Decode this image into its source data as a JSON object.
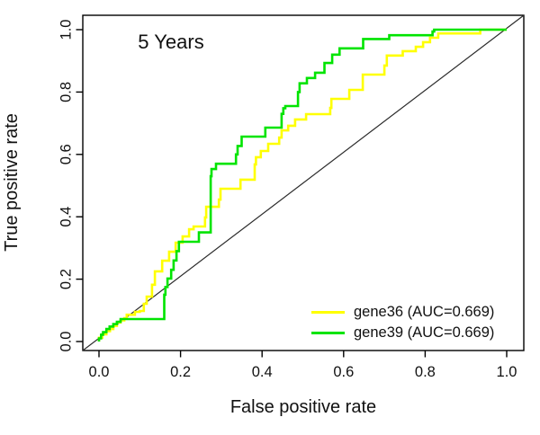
{
  "chart_data": {
    "type": "line",
    "subtype": "roc-step-curves",
    "title": "5 Years",
    "xlabel": "False positive rate",
    "ylabel": "True positive rate",
    "xlim": [
      0.0,
      1.0
    ],
    "ylim": [
      0.0,
      1.0
    ],
    "xticks": [
      0.0,
      0.2,
      0.4,
      0.6,
      0.8,
      1.0
    ],
    "xtick_labels": [
      "0.0",
      "0.2",
      "0.4",
      "0.6",
      "0.8",
      "1.0"
    ],
    "yticks": [
      0.0,
      0.2,
      0.4,
      0.6,
      0.8,
      1.0
    ],
    "ytick_labels": [
      "0.0",
      "0.2",
      "0.4",
      "0.6",
      "0.8",
      "1.0"
    ],
    "grid": false,
    "axis_color": "#000000",
    "text_color": "#111111",
    "legend": {
      "position": "bottom-right",
      "border": false
    },
    "reference_line": {
      "from": [
        0,
        0
      ],
      "to": [
        1,
        1
      ],
      "color": "#2b2b2b",
      "width": 1.2
    },
    "series": [
      {
        "name": "gene36",
        "auc": "0.669",
        "legend_label": "gene36 (AUC=0.669)",
        "color": "#ffff00",
        "line_width": 2.6,
        "points": [
          [
            0.0,
            0.0
          ],
          [
            0.008,
            0.012
          ],
          [
            0.018,
            0.023
          ],
          [
            0.027,
            0.033
          ],
          [
            0.035,
            0.04
          ],
          [
            0.044,
            0.05
          ],
          [
            0.053,
            0.061
          ],
          [
            0.062,
            0.068
          ],
          [
            0.068,
            0.075
          ],
          [
            0.088,
            0.086
          ],
          [
            0.1,
            0.095
          ],
          [
            0.11,
            0.098
          ],
          [
            0.117,
            0.121
          ],
          [
            0.13,
            0.144
          ],
          [
            0.137,
            0.182
          ],
          [
            0.155,
            0.225
          ],
          [
            0.172,
            0.259
          ],
          [
            0.188,
            0.288
          ],
          [
            0.205,
            0.317
          ],
          [
            0.221,
            0.337
          ],
          [
            0.232,
            0.36
          ],
          [
            0.238,
            0.369
          ],
          [
            0.26,
            0.369
          ],
          [
            0.263,
            0.398
          ],
          [
            0.272,
            0.432
          ],
          [
            0.294,
            0.432
          ],
          [
            0.298,
            0.455
          ],
          [
            0.309,
            0.49
          ],
          [
            0.347,
            0.49
          ],
          [
            0.35,
            0.519
          ],
          [
            0.382,
            0.519
          ],
          [
            0.385,
            0.568
          ],
          [
            0.397,
            0.591
          ],
          [
            0.415,
            0.611
          ],
          [
            0.442,
            0.634
          ],
          [
            0.448,
            0.654
          ],
          [
            0.464,
            0.677
          ],
          [
            0.481,
            0.692
          ],
          [
            0.508,
            0.712
          ],
          [
            0.523,
            0.729
          ],
          [
            0.567,
            0.729
          ],
          [
            0.57,
            0.749
          ],
          [
            0.581,
            0.778
          ],
          [
            0.614,
            0.778
          ],
          [
            0.618,
            0.807
          ],
          [
            0.647,
            0.807
          ],
          [
            0.651,
            0.856
          ],
          [
            0.7,
            0.856
          ],
          [
            0.706,
            0.885
          ],
          [
            0.745,
            0.917
          ],
          [
            0.777,
            0.931
          ],
          [
            0.795,
            0.945
          ],
          [
            0.812,
            0.96
          ],
          [
            0.832,
            0.974
          ],
          [
            0.855,
            0.988
          ],
          [
            0.935,
            0.988
          ],
          [
            0.94,
            1.0
          ],
          [
            1.0,
            1.0
          ]
        ]
      },
      {
        "name": "gene39",
        "auc": "0.669",
        "legend_label": "gene39 (AUC=0.669)",
        "color": "#00e400",
        "line_width": 2.6,
        "points": [
          [
            0.0,
            0.0
          ],
          [
            0.005,
            0.01
          ],
          [
            0.01,
            0.022
          ],
          [
            0.018,
            0.03
          ],
          [
            0.026,
            0.04
          ],
          [
            0.035,
            0.048
          ],
          [
            0.044,
            0.056
          ],
          [
            0.053,
            0.063
          ],
          [
            0.062,
            0.072
          ],
          [
            0.16,
            0.072
          ],
          [
            0.163,
            0.15
          ],
          [
            0.168,
            0.175
          ],
          [
            0.177,
            0.202
          ],
          [
            0.183,
            0.23
          ],
          [
            0.19,
            0.26
          ],
          [
            0.196,
            0.29
          ],
          [
            0.205,
            0.32
          ],
          [
            0.245,
            0.32
          ],
          [
            0.25,
            0.35
          ],
          [
            0.274,
            0.35
          ],
          [
            0.276,
            0.53
          ],
          [
            0.287,
            0.553
          ],
          [
            0.297,
            0.57
          ],
          [
            0.336,
            0.57
          ],
          [
            0.34,
            0.6
          ],
          [
            0.35,
            0.627
          ],
          [
            0.363,
            0.657
          ],
          [
            0.408,
            0.657
          ],
          [
            0.412,
            0.686
          ],
          [
            0.448,
            0.686
          ],
          [
            0.452,
            0.73
          ],
          [
            0.457,
            0.748
          ],
          [
            0.463,
            0.755
          ],
          [
            0.488,
            0.755
          ],
          [
            0.492,
            0.8
          ],
          [
            0.51,
            0.828
          ],
          [
            0.53,
            0.845
          ],
          [
            0.553,
            0.862
          ],
          [
            0.572,
            0.893
          ],
          [
            0.59,
            0.92
          ],
          [
            0.603,
            0.94
          ],
          [
            0.648,
            0.94
          ],
          [
            0.652,
            0.97
          ],
          [
            0.712,
            0.97
          ],
          [
            0.716,
            0.982
          ],
          [
            0.818,
            0.982
          ],
          [
            0.822,
            0.994
          ],
          [
            0.84,
            1.0
          ],
          [
            1.0,
            1.0
          ]
        ]
      }
    ]
  }
}
